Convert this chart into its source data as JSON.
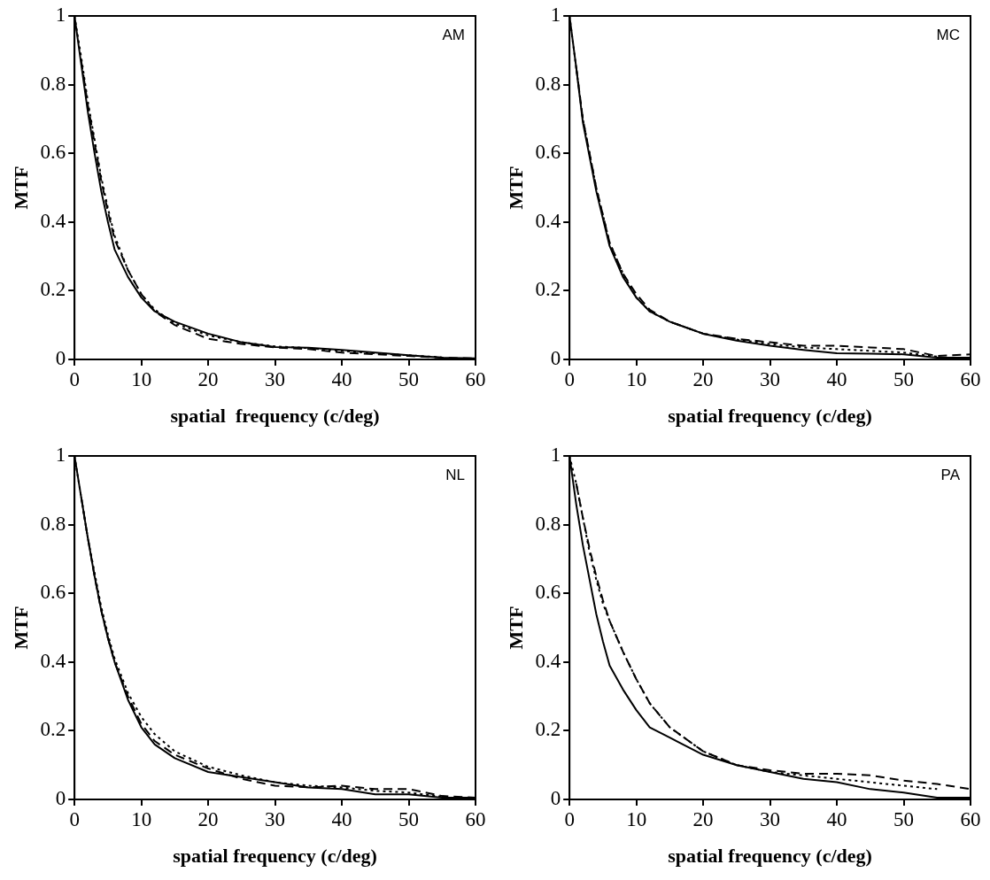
{
  "chart_data": [
    {
      "type": "line",
      "xlabel": "spatial  frequency (c/deg)",
      "ylabel": "MTF",
      "annotations": [
        "AM"
      ],
      "x": [
        0,
        1,
        2,
        3,
        4,
        5,
        6,
        8,
        10,
        12,
        15,
        20,
        25,
        30,
        35,
        40,
        45,
        50,
        55,
        60
      ],
      "xlim": [
        0,
        60
      ],
      "xticks": [
        0,
        10,
        20,
        30,
        40,
        50,
        60
      ],
      "ylim": [
        0,
        1
      ],
      "yticks": [
        0,
        0.2,
        0.4,
        0.6,
        0.8,
        1
      ],
      "series": [
        {
          "color": "#000000",
          "line_style": "solid",
          "values": [
            1,
            0.86,
            0.72,
            0.6,
            0.49,
            0.4,
            0.32,
            0.24,
            0.18,
            0.14,
            0.11,
            0.075,
            0.05,
            0.036,
            0.034,
            0.028,
            0.02,
            0.012,
            0.005,
            0.003
          ]
        },
        {
          "color": "#000000",
          "line_style": "dashed",
          "x": [
            1,
            2,
            3,
            4,
            5,
            6,
            8,
            10,
            12,
            15,
            20,
            25,
            30,
            35,
            40,
            45,
            50,
            55,
            60
          ],
          "values": [
            0.87,
            0.74,
            0.63,
            0.52,
            0.43,
            0.35,
            0.26,
            0.19,
            0.14,
            0.1,
            0.06,
            0.045,
            0.035,
            0.03,
            0.02,
            0.015,
            0.01,
            0.005,
            0.003
          ]
        },
        {
          "color": "#000000",
          "line_style": "dotted",
          "x": [
            0,
            1,
            2,
            3,
            4,
            5,
            6,
            8,
            10,
            12,
            15,
            20,
            25,
            30,
            35,
            40,
            45,
            50,
            55
          ],
          "values": [
            1,
            0.88,
            0.75,
            0.64,
            0.53,
            0.44,
            0.36,
            0.26,
            0.19,
            0.145,
            0.105,
            0.07,
            0.05,
            0.038,
            0.033,
            0.025,
            0.018,
            0.012,
            0.006
          ]
        }
      ]
    },
    {
      "type": "line",
      "xlabel": "spatial frequency (c/deg)",
      "ylabel": "MTF",
      "annotations": [
        "MC"
      ],
      "x": [
        0,
        1,
        2,
        3,
        4,
        5,
        6,
        8,
        10,
        12,
        15,
        20,
        25,
        30,
        35,
        40,
        45,
        50,
        55,
        60
      ],
      "xlim": [
        0,
        60
      ],
      "xticks": [
        0,
        10,
        20,
        30,
        40,
        50,
        60
      ],
      "ylim": [
        0,
        1
      ],
      "yticks": [
        0,
        0.2,
        0.4,
        0.6,
        0.8,
        1
      ],
      "series": [
        {
          "color": "#000000",
          "line_style": "solid",
          "values": [
            1,
            0.85,
            0.69,
            0.59,
            0.49,
            0.41,
            0.33,
            0.24,
            0.18,
            0.14,
            0.11,
            0.075,
            0.055,
            0.04,
            0.028,
            0.018,
            0.017,
            0.015,
            0.005,
            0.005
          ]
        },
        {
          "color": "#000000",
          "line_style": "dashed",
          "x": [
            1,
            2,
            3,
            4,
            5,
            6,
            8,
            10,
            12,
            15,
            20,
            25,
            30,
            35,
            40,
            45,
            50,
            55,
            60
          ],
          "values": [
            0.85,
            0.7,
            0.6,
            0.5,
            0.42,
            0.34,
            0.25,
            0.19,
            0.145,
            0.11,
            0.075,
            0.06,
            0.05,
            0.04,
            0.04,
            0.035,
            0.03,
            0.01,
            0.015
          ]
        },
        {
          "color": "#000000",
          "line_style": "dotted",
          "x": [
            0,
            1,
            2,
            3,
            4,
            5,
            6,
            8,
            10,
            12,
            15,
            20,
            25,
            30,
            35,
            40,
            45,
            50,
            55
          ],
          "values": [
            1,
            0.85,
            0.7,
            0.6,
            0.5,
            0.42,
            0.34,
            0.25,
            0.18,
            0.14,
            0.11,
            0.075,
            0.058,
            0.045,
            0.035,
            0.03,
            0.025,
            0.02,
            0.008
          ]
        }
      ]
    },
    {
      "type": "line",
      "xlabel": "spatial frequency (c/deg)",
      "ylabel": "MTF",
      "annotations": [
        "NL"
      ],
      "x": [
        0,
        1,
        2,
        3,
        4,
        5,
        6,
        8,
        10,
        12,
        15,
        20,
        25,
        30,
        35,
        40,
        45,
        50,
        55,
        60
      ],
      "xlim": [
        0,
        60
      ],
      "xticks": [
        0,
        10,
        20,
        30,
        40,
        50,
        60
      ],
      "ylim": [
        0,
        1
      ],
      "yticks": [
        0,
        0.2,
        0.4,
        0.6,
        0.8,
        1
      ],
      "series": [
        {
          "color": "#000000",
          "line_style": "solid",
          "values": [
            1,
            0.88,
            0.76,
            0.65,
            0.55,
            0.47,
            0.4,
            0.29,
            0.21,
            0.16,
            0.12,
            0.08,
            0.065,
            0.05,
            0.035,
            0.03,
            0.015,
            0.015,
            0.005,
            0.005
          ]
        },
        {
          "color": "#000000",
          "line_style": "dashed",
          "x": [
            1,
            2,
            3,
            4,
            5,
            6,
            8,
            10,
            12,
            15,
            20,
            25,
            30,
            35,
            40,
            45,
            50,
            55,
            60
          ],
          "values": [
            0.88,
            0.76,
            0.65,
            0.55,
            0.47,
            0.4,
            0.3,
            0.22,
            0.17,
            0.13,
            0.09,
            0.06,
            0.04,
            0.035,
            0.04,
            0.03,
            0.03,
            0.01,
            0.005
          ]
        },
        {
          "color": "#000000",
          "line_style": "dotted",
          "x": [
            0,
            1,
            2,
            3,
            4,
            5,
            6,
            8,
            10,
            12,
            15,
            20,
            25,
            30,
            35,
            40,
            45,
            50,
            55
          ],
          "values": [
            1,
            0.88,
            0.76,
            0.66,
            0.56,
            0.48,
            0.41,
            0.31,
            0.24,
            0.19,
            0.14,
            0.095,
            0.07,
            0.05,
            0.04,
            0.035,
            0.025,
            0.02,
            0.008
          ]
        }
      ]
    },
    {
      "type": "line",
      "xlabel": "spatial frequency (c/deg)",
      "ylabel": "MTF",
      "annotations": [
        "PA"
      ],
      "x": [
        0,
        1,
        2,
        3,
        4,
        5,
        6,
        8,
        10,
        12,
        15,
        20,
        25,
        30,
        35,
        40,
        45,
        50,
        55,
        60
      ],
      "xlim": [
        0,
        60
      ],
      "xticks": [
        0,
        10,
        20,
        30,
        40,
        50,
        60
      ],
      "ylim": [
        0,
        1
      ],
      "yticks": [
        0,
        0.2,
        0.4,
        0.6,
        0.8,
        1
      ],
      "series": [
        {
          "color": "#000000",
          "line_style": "solid",
          "values": [
            1,
            0.86,
            0.74,
            0.64,
            0.54,
            0.46,
            0.39,
            0.32,
            0.26,
            0.21,
            0.18,
            0.13,
            0.1,
            0.08,
            0.06,
            0.05,
            0.03,
            0.02,
            0.005,
            0.005
          ]
        },
        {
          "color": "#000000",
          "line_style": "dashed",
          "x": [
            1,
            2,
            3,
            4,
            5,
            6,
            8,
            10,
            12,
            15,
            20,
            25,
            30,
            35,
            40,
            45,
            50,
            55,
            60
          ],
          "values": [
            0.92,
            0.82,
            0.73,
            0.65,
            0.58,
            0.52,
            0.43,
            0.35,
            0.28,
            0.21,
            0.14,
            0.1,
            0.085,
            0.075,
            0.075,
            0.07,
            0.055,
            0.045,
            0.03
          ]
        },
        {
          "color": "#000000",
          "line_style": "dotted",
          "x": [
            0,
            1,
            2,
            3,
            4,
            5,
            6,
            8,
            10,
            12,
            15,
            20,
            25,
            30,
            35,
            40,
            45,
            50,
            55
          ],
          "values": [
            1,
            0.92,
            0.82,
            0.72,
            0.64,
            0.57,
            0.52,
            0.43,
            0.35,
            0.28,
            0.21,
            0.14,
            0.1,
            0.08,
            0.07,
            0.06,
            0.05,
            0.04,
            0.03
          ]
        }
      ]
    }
  ]
}
